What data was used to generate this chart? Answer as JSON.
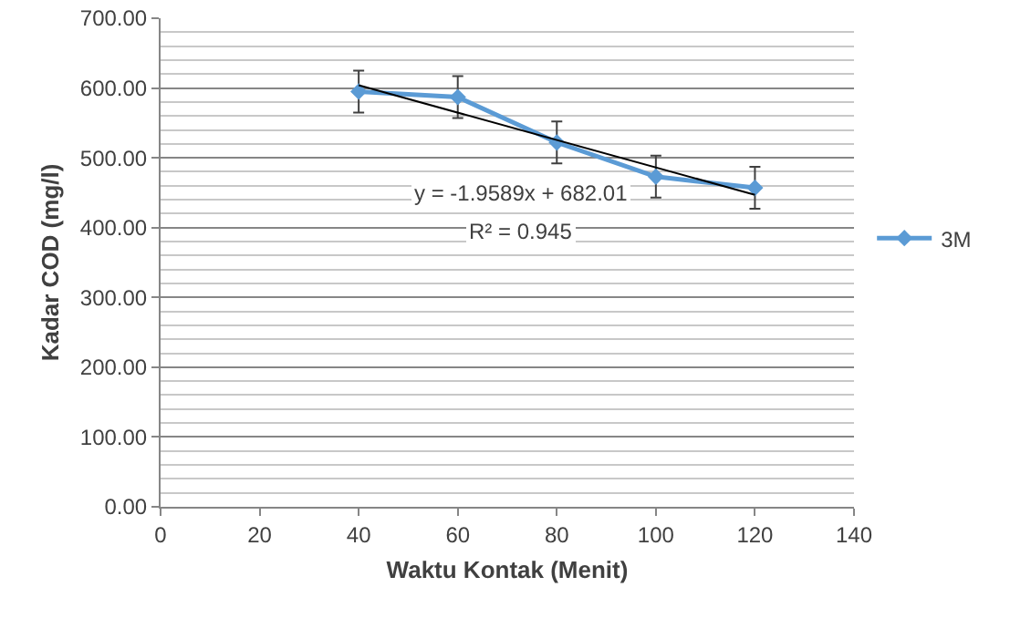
{
  "chart_data": {
    "type": "line",
    "xlabel": "Waktu Kontak (Menit)",
    "ylabel": "Kadar COD (mg/l)",
    "x": [
      40,
      60,
      80,
      100,
      120
    ],
    "series": [
      {
        "name": "3M",
        "color": "#5b9bd5",
        "values": [
          595,
          587,
          522,
          473,
          457
        ],
        "errors": [
          30,
          30,
          30,
          30,
          30
        ],
        "marker": "diamond"
      },
      {
        "type": "line",
        "color": "#000000",
        "x": [
          40,
          120
        ],
        "values": [
          604,
          447
        ],
        "marker": "none"
      }
    ],
    "xlim": [
      0,
      140
    ],
    "xticks": [
      0,
      20,
      40,
      60,
      80,
      100,
      120,
      140
    ],
    "ylim": [
      0,
      700
    ],
    "yticks": [
      {
        "value": 0,
        "label": "0.00"
      },
      {
        "value": 100,
        "label": "100.00"
      },
      {
        "value": 200,
        "label": "200.00"
      },
      {
        "value": 300,
        "label": "300.00"
      },
      {
        "value": 400,
        "label": "400.00"
      },
      {
        "value": 500,
        "label": "500.00"
      },
      {
        "value": 600,
        "label": "600.00"
      },
      {
        "value": 700,
        "label": "700.00"
      }
    ],
    "annotations": [
      "y = -1.9589x + 682.01",
      "R² = 0.945"
    ],
    "grid": "y",
    "legend": "right",
    "line_style": "solid"
  }
}
